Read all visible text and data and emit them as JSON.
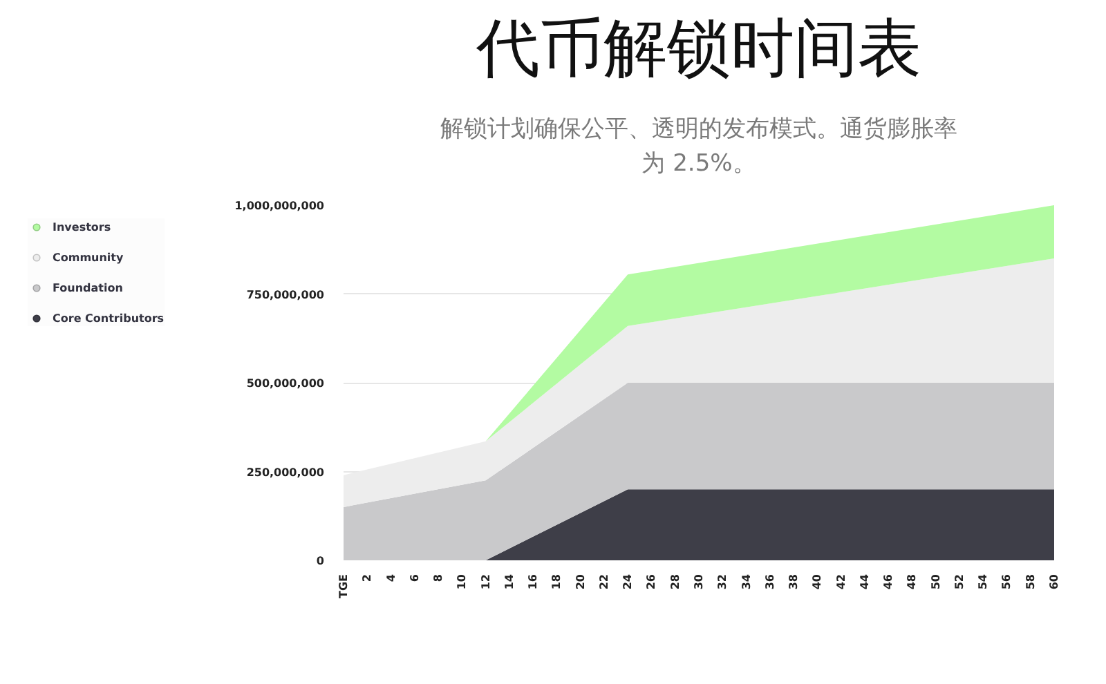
{
  "chart_data": {
    "type": "area",
    "title": "代币解锁时间表",
    "subtitle": "解锁计划确保公平、透明的发布模式。通货膨胀率为 2.5%。",
    "stacked": true,
    "x": [
      0,
      12,
      24,
      60
    ],
    "series": [
      {
        "name": "Core Contributors",
        "color": "#3e3e48",
        "values": [
          0,
          0,
          200000000,
          200000000
        ]
      },
      {
        "name": "Foundation",
        "color": "#c9c9cb",
        "values": [
          150000000,
          225000000,
          300000000,
          300000000
        ]
      },
      {
        "name": "Community",
        "color": "#ededed",
        "values": [
          90000000,
          110000000,
          160000000,
          350000000
        ]
      },
      {
        "name": "Investors",
        "color": "#b3fba2",
        "values": [
          null,
          0,
          145000000,
          150000000
        ]
      }
    ],
    "xlim": [
      0,
      60
    ],
    "xticks": [
      {
        "value": 0,
        "label": "TGE"
      },
      2,
      4,
      6,
      8,
      10,
      12,
      14,
      16,
      18,
      20,
      22,
      24,
      26,
      28,
      30,
      32,
      34,
      36,
      38,
      40,
      42,
      44,
      46,
      48,
      50,
      52,
      54,
      56,
      58,
      60
    ],
    "ylim": [
      0,
      1000000000
    ],
    "yticks": [
      0,
      {
        "value": 250000000,
        "label": "250,000,000"
      },
      {
        "value": 500000000,
        "label": "500,000,000"
      },
      {
        "value": 750000000,
        "label": "750,000,000"
      },
      {
        "value": 1000000000,
        "label": "1,000,000,000"
      }
    ],
    "grid": "y",
    "legend": "left"
  }
}
